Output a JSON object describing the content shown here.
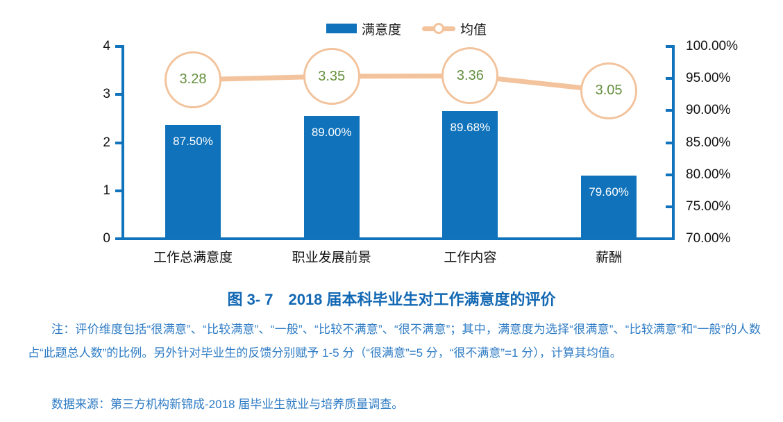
{
  "colors": {
    "bar": "#0F72BA",
    "axis": "#1173BC",
    "peach": "#F2C39C",
    "green": "#648F3E",
    "titleBlue": "#1268B3",
    "noteBlue": "#2F7CC5"
  },
  "chart_data": {
    "type": "bar",
    "categories": [
      "工作总满意度",
      "职业发展前景",
      "工作内容",
      "薪酬"
    ],
    "series": [
      {
        "name": "满意度",
        "type": "bar",
        "axis": "right",
        "values": [
          87.5,
          89.0,
          89.68,
          79.6
        ],
        "labels": [
          "87.50%",
          "89.00%",
          "89.68%",
          "79.60%"
        ]
      },
      {
        "name": "均值",
        "type": "line",
        "axis": "left",
        "values": [
          3.28,
          3.35,
          3.36,
          3.05
        ],
        "labels": [
          "3.28",
          "3.35",
          "3.36",
          "3.05"
        ]
      }
    ],
    "left_axis": {
      "min": 0,
      "max": 4,
      "ticks": [
        "4",
        "3",
        "2",
        "1",
        "0"
      ]
    },
    "right_axis": {
      "min": 70,
      "max": 100,
      "ticks": [
        "100.00%",
        "95.00%",
        "90.00%",
        "85.00%",
        "80.00%",
        "75.00%",
        "70.00%"
      ]
    },
    "grid": false,
    "legend_position": "top-center"
  },
  "caption": {
    "title": "图 3- 7　2018 届本科毕业生对工作满意度的评价"
  },
  "notes": {
    "note": "注：评价维度包括“很满意”、“比较满意”、“一般”、“比较不满意”、“很不满意”；其中，满意度为选择“很满意”、“比较满意”和“一般”的人数占“此题总人数”的比例。另外针对毕业生的反馈分别赋予 1-5 分（“很满意”=5 分，“很不满意”=1 分），计算其均值。",
    "source": "数据来源：第三方机构新锦成-2018 届毕业生就业与培养质量调查。"
  }
}
